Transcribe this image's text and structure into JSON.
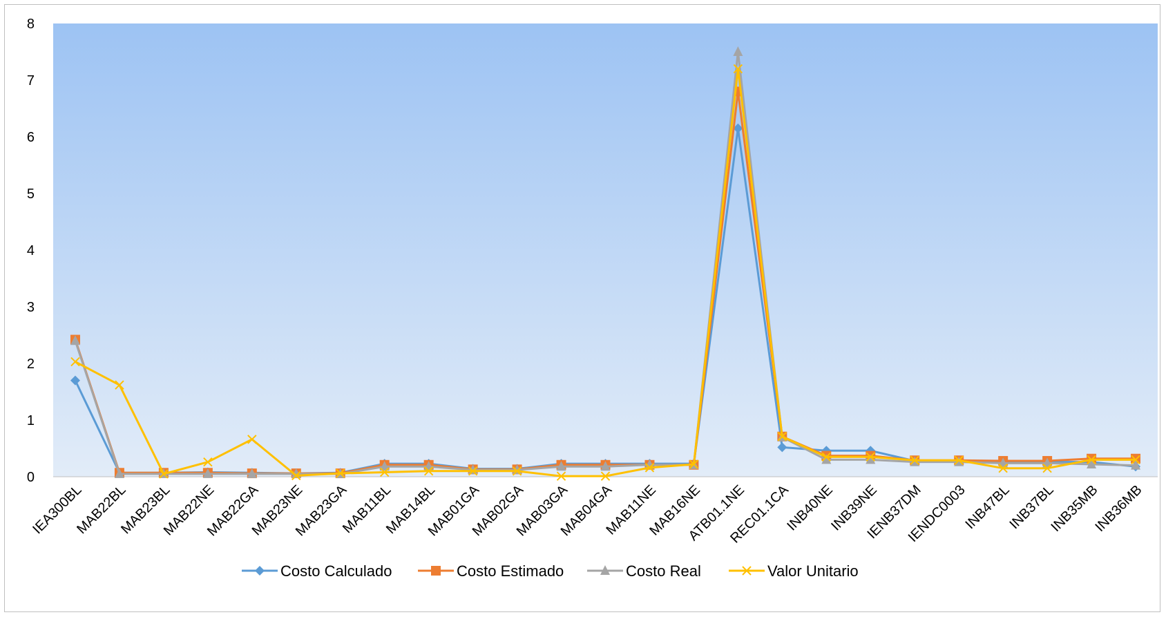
{
  "chart_data": {
    "type": "line",
    "title": "",
    "xlabel": "",
    "ylabel": "",
    "ylim": [
      0,
      8
    ],
    "yticks": [
      0,
      1,
      2,
      3,
      4,
      5,
      6,
      7,
      8
    ],
    "grid": false,
    "legend_position": "bottom",
    "categories": [
      "IEA300BL",
      "MAB22BL",
      "MAB23BL",
      "MAB22NE",
      "MAB22GA",
      "MAB23NE",
      "MAB23GA",
      "MAB11BL",
      "MAB14BL",
      "MAB01GA",
      "MAB02GA",
      "MAB03GA",
      "MAB04GA",
      "MAB11NE",
      "MAB16NE",
      "ATB01.1NE",
      "REC01.1CA",
      "INB40NE",
      "INB39NE",
      "IENB37DM",
      "IENDC0003",
      "INB47BL",
      "INB37BL",
      "INB35MB",
      "INB36MB"
    ],
    "series": [
      {
        "name": "Costo Calculado",
        "color": "#5b9bd5",
        "marker": "diamond",
        "values": [
          1.7,
          0.07,
          0.07,
          0.08,
          0.07,
          0.06,
          0.07,
          0.23,
          0.23,
          0.14,
          0.14,
          0.23,
          0.23,
          0.23,
          0.23,
          6.15,
          0.52,
          0.46,
          0.46,
          0.28,
          0.28,
          0.26,
          0.26,
          0.26,
          0.18
        ]
      },
      {
        "name": "Costo Estimado",
        "color": "#ed7d31",
        "marker": "square",
        "values": [
          2.42,
          0.07,
          0.07,
          0.07,
          0.06,
          0.06,
          0.06,
          0.21,
          0.21,
          0.13,
          0.13,
          0.21,
          0.21,
          0.21,
          0.21,
          6.8,
          0.71,
          0.37,
          0.37,
          0.29,
          0.29,
          0.28,
          0.28,
          0.32,
          0.32
        ]
      },
      {
        "name": "Costo Real",
        "color": "#a5a5a5",
        "marker": "triangle",
        "values": [
          2.4,
          0.05,
          0.05,
          0.05,
          0.05,
          0.05,
          0.05,
          0.18,
          0.18,
          0.12,
          0.12,
          0.18,
          0.18,
          0.21,
          0.21,
          7.5,
          0.7,
          0.3,
          0.3,
          0.26,
          0.26,
          0.24,
          0.24,
          0.22,
          0.2
        ]
      },
      {
        "name": "Valor Unitario",
        "color": "#ffc000",
        "marker": "x",
        "values": [
          2.03,
          1.62,
          0.05,
          0.26,
          0.66,
          0.02,
          0.06,
          0.08,
          0.1,
          0.1,
          0.1,
          0.01,
          0.01,
          0.16,
          0.22,
          7.2,
          0.71,
          0.35,
          0.35,
          0.29,
          0.29,
          0.15,
          0.15,
          0.3,
          0.3
        ]
      }
    ]
  }
}
